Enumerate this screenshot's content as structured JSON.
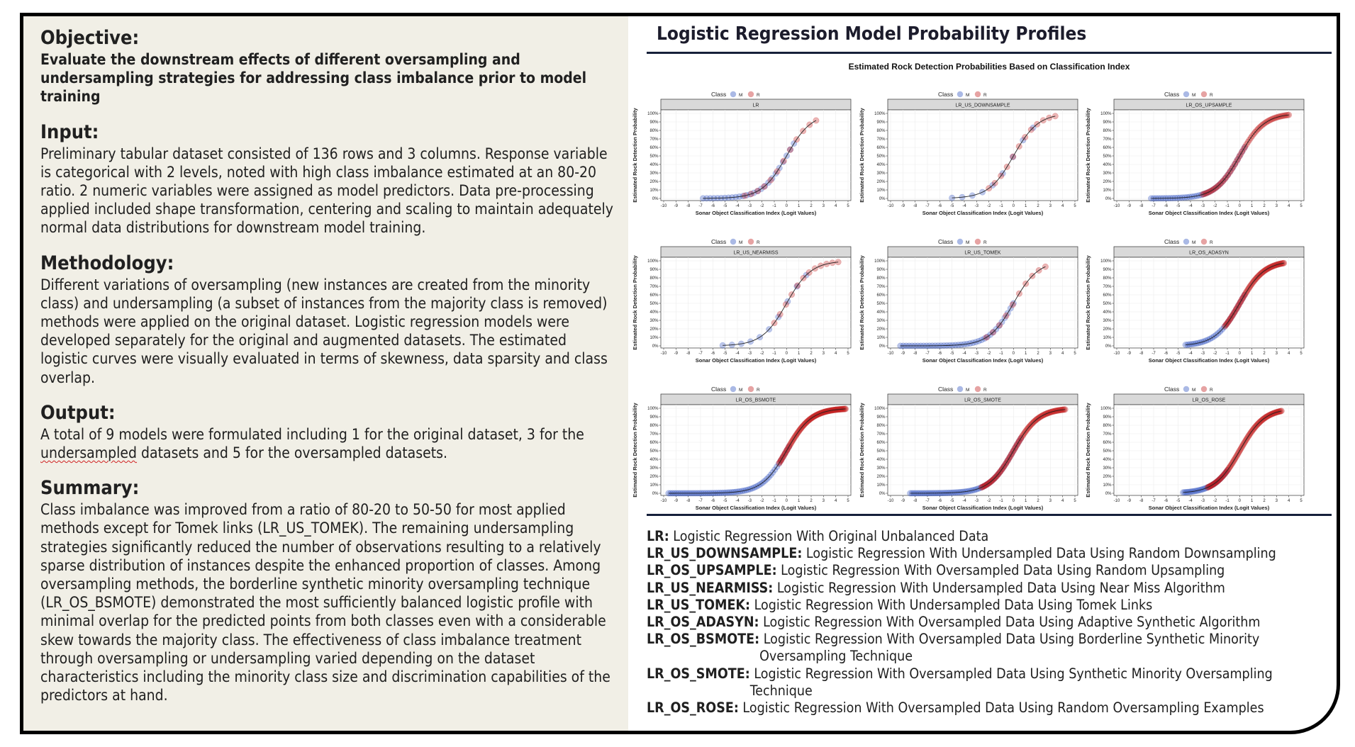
{
  "left": {
    "objective": {
      "heading": "Objective:",
      "text": "Evaluate the downstream effects of different oversampling and undersampling strategies for addressing class imbalance prior to model training"
    },
    "input": {
      "heading": "Input:",
      "text": "Preliminary tabular dataset consisted of 136 rows and 3 columns. Response variable is categorical with 2 levels, noted with high class imbalance estimated at an 80-20 ratio. 2 numeric variables were assigned as model predictors. Data pre-processing applied included shape transformation, centering and scaling to maintain adequately normal data distributions for downstream model training."
    },
    "methodology": {
      "heading": "Methodology:",
      "text": "Different variations of oversampling (new instances are created from the minority class) and undersampling (a subset of instances from the majority class is removed) methods were applied on the original dataset. Logistic regression models were developed separately for the original and augmented datasets. The estimated logistic curves were visually evaluated in terms of skewness, data sparsity and class overlap."
    },
    "output": {
      "heading": "Output:",
      "text_before": "A total of 9 models were formulated including 1 for the original dataset, 3 for the ",
      "underlined_word": "undersampled",
      "text_after": " datasets and 5 for the oversampled datasets."
    },
    "summary": {
      "heading": "Summary:",
      "text": "Class imbalance was improved from a ratio of 80-20 to 50-50 for most applied methods except for Tomek links (LR_US_TOMEK). The remaining undersampling strategies significantly reduced the number of observations resulting to a relatively sparse distribution of instances despite the enhanced proportion of classes. Among oversampling methods, the borderline synthetic minority oversampling technique (LR_OS_BSMOTE) demonstrated the most sufficiently balanced logistic profile with minimal overlap for the predicted points from both classes even with a considerable skew towards the majority class. The effectiveness of class imbalance treatment through oversampling or undersampling varied depending on the dataset characteristics including the minority class size and discrimination capabilities of the predictors at hand."
    }
  },
  "right": {
    "title": "Logistic Regression Model Probability Profiles",
    "definitions": [
      {
        "key": "LR:",
        "text": "Logistic Regression With Original Unbalanced Data"
      },
      {
        "key": "LR_US_DOWNSAMPLE:",
        "text": "Logistic Regression With Undersampled Data Using Random Downsampling"
      },
      {
        "key": "LR_OS_UPSAMPLE:",
        "text": "Logistic Regression With Oversampled Data Using Random Upsampling"
      },
      {
        "key": "LR_US_NEARMISS:",
        "text": "Logistic Regression With Undersampled Data Using Near Miss Algorithm"
      },
      {
        "key": "LR_US_TOMEK:",
        "text": "Logistic Regression With Undersampled Data Using Tomek Links"
      },
      {
        "key": "LR_OS_ADASYN:",
        "text": "Logistic Regression With Oversampled Data Using Adaptive Synthetic Algorithm"
      },
      {
        "key": "LR_OS_BSMOTE:",
        "text": "Logistic Regression With Oversampled Data Using Borderline Synthetic Minority Oversampling Technique"
      },
      {
        "key": "LR_OS_SMOTE:",
        "text": "Logistic Regression With Oversampled Data Using Synthetic Minority Oversampling Technique"
      },
      {
        "key": "LR_OS_ROSE:",
        "text": "Logistic Regression With Oversampled Data Using Random Oversampling Examples"
      }
    ]
  },
  "colors": {
    "class_M": "#2a4fbf",
    "class_R": "#c01818",
    "rule": "#16203a",
    "panel_bg": "#f1efe6"
  },
  "chart_data": {
    "type": "scatter",
    "title": "Estimated Rock Detection Probabilities Based on Classification Index",
    "xlabel": "Sonar Object Classification Index (Logit Values)",
    "ylabel": "Estimated Rock Detection Probability",
    "legend_title": "Class",
    "legend": [
      "M",
      "R"
    ],
    "legend_position": "top",
    "x_ticks": [
      -10,
      -9,
      -8,
      -7,
      -6,
      -5,
      -4,
      -3,
      -2,
      -1,
      0,
      1,
      2,
      3,
      4,
      5
    ],
    "y_ticks": [
      "0%",
      "10%",
      "20%",
      "30%",
      "40%",
      "50%",
      "60%",
      "70%",
      "80%",
      "90%",
      "100%"
    ],
    "xlim": [
      -10,
      5
    ],
    "ylim": [
      0,
      1
    ],
    "grid": true,
    "panels": [
      {
        "name": "LR",
        "M": {
          "min": -6.8,
          "max": 0.6,
          "n": 26
        },
        "R": {
          "min": -3.4,
          "max": 2.4,
          "n": 12
        }
      },
      {
        "name": "LR_US_DOWNSAMPLE",
        "M": {
          "min": -5.0,
          "max": 1.6,
          "n": 9
        },
        "R": {
          "min": -2.0,
          "max": 3.4,
          "n": 12
        }
      },
      {
        "name": "LR_OS_UPSAMPLE",
        "M": {
          "min": -7.2,
          "max": 0.4,
          "n": 40
        },
        "R": {
          "min": -3.0,
          "max": 4.0,
          "n": 60
        }
      },
      {
        "name": "LR_US_NEARMISS",
        "M": {
          "min": -5.2,
          "max": 1.6,
          "n": 10
        },
        "R": {
          "min": -1.0,
          "max": 4.2,
          "n": 12
        }
      },
      {
        "name": "LR_US_TOMEK",
        "M": {
          "min": -9.2,
          "max": 0.0,
          "n": 40
        },
        "R": {
          "min": -2.2,
          "max": 2.6,
          "n": 10
        }
      },
      {
        "name": "LR_OS_ADASYN",
        "M": {
          "min": -4.4,
          "max": 0.4,
          "n": 30
        },
        "R": {
          "min": -1.2,
          "max": 3.6,
          "n": 70
        }
      },
      {
        "name": "LR_OS_BSMOTE",
        "M": {
          "min": -9.6,
          "max": 0.2,
          "n": 60
        },
        "R": {
          "min": -0.6,
          "max": 4.8,
          "n": 90
        }
      },
      {
        "name": "LR_OS_SMOTE",
        "M": {
          "min": -8.4,
          "max": 0.6,
          "n": 60
        },
        "R": {
          "min": -2.6,
          "max": 4.2,
          "n": 90
        }
      },
      {
        "name": "LR_OS_ROSE",
        "M": {
          "min": -4.6,
          "max": -1.0,
          "n": 30
        },
        "R": {
          "min": -2.6,
          "max": 3.4,
          "n": 90
        }
      }
    ]
  }
}
